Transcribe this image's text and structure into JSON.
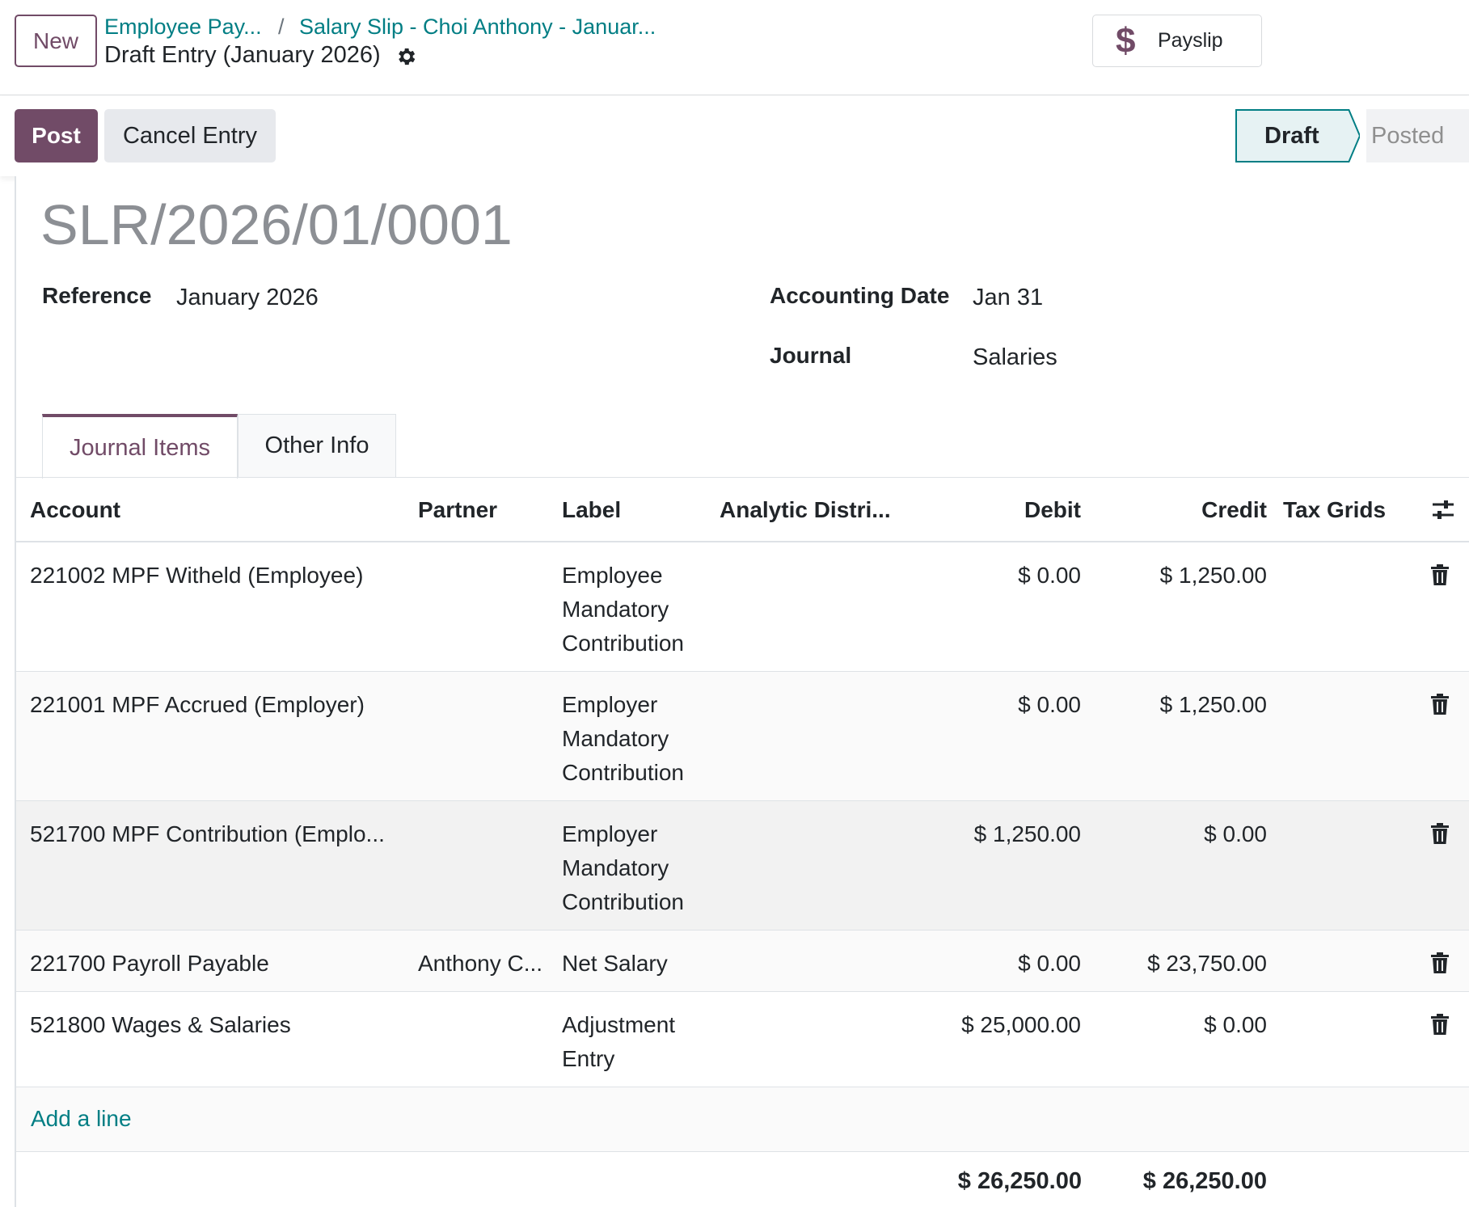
{
  "header": {
    "new_label": "New",
    "breadcrumb": [
      "Employee Pay...",
      "Salary Slip - Choi Anthony - Januar..."
    ],
    "breadcrumb_separator": "/",
    "record_title": "Draft Entry (January 2026)",
    "payslip_button": {
      "icon": "$",
      "label": "Payslip"
    }
  },
  "statusbar": {
    "post_label": "Post",
    "cancel_label": "Cancel Entry",
    "stages": [
      "Draft",
      "Posted"
    ],
    "active_stage": "Draft"
  },
  "form": {
    "entry_name": "SLR/2026/01/0001",
    "reference": {
      "label": "Reference",
      "value": "January 2026"
    },
    "accounting_date": {
      "label": "Accounting Date",
      "value": "Jan 31"
    },
    "journal": {
      "label": "Journal",
      "value": "Salaries"
    }
  },
  "tabs": [
    "Journal Items",
    "Other Info"
  ],
  "table": {
    "columns": [
      "Account",
      "Partner",
      "Label",
      "Analytic Distri...",
      "Debit",
      "Credit",
      "Tax Grids"
    ],
    "rows": [
      {
        "account": "221002 MPF Witheld (Employee)",
        "partner": "",
        "label_lines": [
          "Employee",
          "Mandatory",
          "Contribution"
        ],
        "debit": "$ 0.00",
        "credit": "$ 1,250.00"
      },
      {
        "account": "221001 MPF Accrued (Employer)",
        "partner": "",
        "label_lines": [
          "Employer",
          "Mandatory",
          "Contribution"
        ],
        "debit": "$ 0.00",
        "credit": "$ 1,250.00"
      },
      {
        "account": "521700 MPF Contribution (Emplo...",
        "partner": "",
        "label_lines": [
          "Employer",
          "Mandatory",
          "Contribution"
        ],
        "debit": "$ 1,250.00",
        "credit": "$ 0.00"
      },
      {
        "account": "221700 Payroll Payable",
        "partner": "Anthony C...",
        "label_lines": [
          "Net Salary"
        ],
        "debit": "$ 0.00",
        "credit": "$ 23,750.00"
      },
      {
        "account": "521800 Wages & Salaries",
        "partner": "",
        "label_lines": [
          "Adjustment",
          "Entry"
        ],
        "debit": "$ 25,000.00",
        "credit": "$ 0.00"
      }
    ],
    "add_line_label": "Add a line",
    "total_debit": "$ 26,250.00",
    "total_credit": "$ 26,250.00"
  },
  "colors": {
    "brand": "#714b67",
    "link": "#017e84",
    "hover_row": "#f2f2f2"
  }
}
